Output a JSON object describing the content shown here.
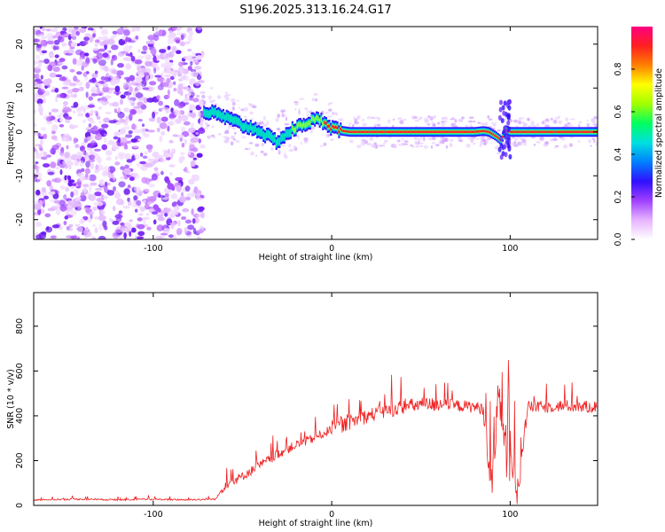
{
  "chart_data": [
    {
      "type": "heatmap",
      "title": "S196.2025.313.16.24.G17",
      "xlabel": "Height of straight line (km)",
      "ylabel": "Frequency (Hz)",
      "xlim": [
        -167,
        149
      ],
      "ylim": [
        -24.5,
        24
      ],
      "xticks": [
        -100,
        0,
        100
      ],
      "yticks": [
        -20,
        -10,
        0,
        10,
        20
      ],
      "colorbar": {
        "label": "Normalized spectral amplitude",
        "range": [
          0,
          1
        ],
        "ticks": [
          0.0,
          0.2,
          0.4,
          0.6,
          0.8
        ],
        "tick_labels": [
          "0.0",
          "0.2",
          "0.4",
          "0.6",
          "0.8"
        ],
        "colors": [
          "#ffffff",
          "#e6b4ff",
          "#a040ff",
          "#3010ff",
          "#0080ff",
          "#00e0e0",
          "#00ff60",
          "#a0ff00",
          "#ffff00",
          "#ff8000",
          "#ff2020",
          "#ff0080"
        ]
      },
      "noise_region_x": [
        -167,
        -72
      ],
      "ridge": {
        "x": [
          -72,
          -65,
          -58,
          -50,
          -42,
          -36,
          -31,
          -27,
          -22,
          -17,
          -12,
          -8,
          -3,
          0,
          5,
          10,
          20,
          30,
          40,
          50,
          60,
          70,
          80,
          85,
          88,
          92,
          95,
          97,
          100,
          110,
          120,
          130,
          140,
          149
        ],
        "y": [
          4.5,
          4.2,
          3.0,
          1.5,
          0.5,
          -1.0,
          -2.2,
          -1.0,
          0.5,
          1.5,
          2.5,
          2.8,
          2.0,
          1.0,
          0.3,
          0.0,
          0.0,
          0.0,
          0.0,
          0.0,
          0.0,
          0.0,
          0.0,
          0.2,
          0.0,
          -1.0,
          -2.0,
          0.5,
          0.0,
          0.0,
          0.0,
          0.0,
          0.0,
          0.0
        ]
      }
    },
    {
      "type": "line",
      "xlabel": "Height of straight line (km)",
      "ylabel": "SNR (10 * v/v)",
      "xlim": [
        -167,
        149
      ],
      "ylim": [
        0,
        950
      ],
      "xticks": [
        -100,
        0,
        100
      ],
      "yticks": [
        0,
        200,
        400,
        600,
        800
      ],
      "color": "#ee2222",
      "series": [
        {
          "name": "SNR",
          "x": [
            -167,
            -140,
            -120,
            -100,
            -80,
            -65,
            -60,
            -55,
            -50,
            -40,
            -30,
            -20,
            -10,
            0,
            10,
            20,
            30,
            40,
            50,
            60,
            70,
            80,
            85,
            88,
            90,
            93,
            96,
            98,
            100,
            102,
            104,
            110,
            120,
            130,
            140,
            149
          ],
          "y": [
            25,
            28,
            25,
            27,
            25,
            28,
            90,
            110,
            130,
            180,
            230,
            270,
            300,
            340,
            370,
            400,
            420,
            440,
            450,
            450,
            445,
            440,
            430,
            150,
            120,
            450,
            400,
            120,
            80,
            200,
            80,
            440,
            440,
            445,
            440,
            440
          ],
          "oscillation": [
            {
              "x": [
                -167,
                -62
              ],
              "amp": 12
            },
            {
              "x": [
                -62,
                0
              ],
              "amp": 70
            },
            {
              "x": [
                0,
                60
              ],
              "amp": 110
            },
            {
              "x": [
                60,
                85
              ],
              "amp": 90
            },
            {
              "x": [
                85,
                106
              ],
              "amp": 300
            },
            {
              "x": [
                106,
                149
              ],
              "amp": 90
            }
          ]
        }
      ]
    }
  ]
}
